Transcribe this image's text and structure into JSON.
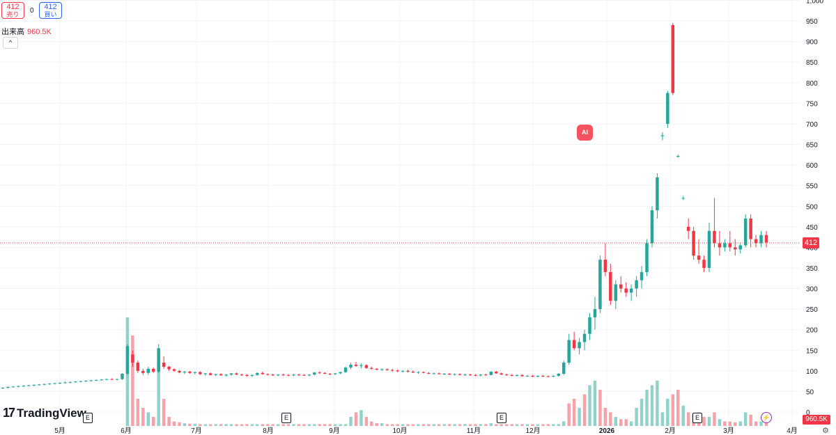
{
  "header": {
    "sell_price": "412",
    "sell_label": "売り",
    "buy_price": "412",
    "buy_label": "買い",
    "spread": "0",
    "volume_label": "出来高",
    "volume_value": "960.5K",
    "collapse_glyph": "^"
  },
  "ai_badge": "AI",
  "logo_text": "TradingView",
  "price_tag": "412",
  "volume_tag": "960.5K",
  "event_marker": "E",
  "colors": {
    "up": "#26a69a",
    "down": "#f23645",
    "up_vol": "#93d2cb",
    "down_vol": "#f5a3a8",
    "grid": "#f0f3fa"
  },
  "chart_data": {
    "type": "candlestick",
    "y_ticks": [
      "0",
      "50",
      "100",
      "150",
      "200",
      "250",
      "300",
      "350",
      "400",
      "450",
      "500",
      "550",
      "600",
      "650",
      "700",
      "750",
      "800",
      "850",
      "900",
      "950",
      "1,000"
    ],
    "ylim": [
      0,
      1000
    ],
    "x_ticks": [
      "5月",
      "6月",
      "7月",
      "8月",
      "9月",
      "10月",
      "11月",
      "12月",
      "2026",
      "2月",
      "3月",
      "4月"
    ],
    "last_price": 412,
    "last_volume": "960.5K",
    "candles": [
      [
        58,
        60,
        56,
        59
      ],
      [
        59,
        62,
        57,
        61
      ],
      [
        61,
        63,
        59,
        62
      ],
      [
        62,
        64,
        60,
        63
      ],
      [
        63,
        65,
        61,
        64
      ],
      [
        64,
        66,
        62,
        65
      ],
      [
        65,
        67,
        63,
        66
      ],
      [
        66,
        68,
        64,
        67
      ],
      [
        67,
        69,
        65,
        68
      ],
      [
        68,
        70,
        66,
        69
      ],
      [
        69,
        71,
        67,
        70
      ],
      [
        70,
        72,
        68,
        71
      ],
      [
        71,
        74,
        69,
        72
      ],
      [
        72,
        74,
        70,
        73
      ],
      [
        73,
        75,
        71,
        74
      ],
      [
        74,
        76,
        72,
        75
      ],
      [
        75,
        77,
        73,
        76
      ],
      [
        76,
        78,
        74,
        77
      ],
      [
        77,
        79,
        75,
        78
      ],
      [
        78,
        80,
        76,
        79
      ],
      [
        79,
        81,
        77,
        80
      ],
      [
        80,
        82,
        78,
        79
      ],
      [
        79,
        81,
        77,
        80
      ],
      [
        80,
        95,
        78,
        93
      ],
      [
        93,
        165,
        90,
        160
      ],
      [
        140,
        150,
        110,
        120
      ],
      [
        120,
        125,
        95,
        100
      ],
      [
        100,
        105,
        90,
        95
      ],
      [
        95,
        110,
        90,
        105
      ],
      [
        105,
        108,
        95,
        98
      ],
      [
        98,
        165,
        95,
        155
      ],
      [
        120,
        135,
        105,
        110
      ],
      [
        110,
        112,
        100,
        104
      ],
      [
        104,
        106,
        98,
        100
      ],
      [
        100,
        102,
        94,
        96
      ],
      [
        96,
        100,
        92,
        98
      ],
      [
        98,
        100,
        93,
        95
      ],
      [
        95,
        98,
        91,
        97
      ],
      [
        97,
        99,
        90,
        92
      ],
      [
        92,
        95,
        88,
        94
      ],
      [
        94,
        96,
        89,
        90
      ],
      [
        90,
        93,
        87,
        92
      ],
      [
        92,
        94,
        88,
        89
      ],
      [
        89,
        92,
        86,
        91
      ],
      [
        91,
        95,
        88,
        94
      ],
      [
        94,
        96,
        90,
        91
      ],
      [
        91,
        93,
        88,
        90
      ],
      [
        90,
        92,
        86,
        88
      ],
      [
        88,
        91,
        85,
        90
      ],
      [
        90,
        96,
        88,
        95
      ],
      [
        95,
        98,
        91,
        92
      ],
      [
        92,
        94,
        89,
        91
      ],
      [
        91,
        93,
        88,
        89
      ],
      [
        89,
        92,
        87,
        91
      ],
      [
        91,
        93,
        88,
        90
      ],
      [
        90,
        92,
        87,
        89
      ],
      [
        89,
        92,
        87,
        91
      ],
      [
        91,
        93,
        88,
        90
      ],
      [
        90,
        92,
        88,
        89
      ],
      [
        89,
        92,
        87,
        91
      ],
      [
        91,
        97,
        89,
        96
      ],
      [
        96,
        99,
        93,
        95
      ],
      [
        95,
        97,
        92,
        93
      ],
      [
        93,
        95,
        90,
        92
      ],
      [
        92,
        95,
        90,
        94
      ],
      [
        94,
        98,
        92,
        97
      ],
      [
        97,
        110,
        95,
        108
      ],
      [
        108,
        120,
        104,
        115
      ],
      [
        115,
        122,
        110,
        112
      ],
      [
        112,
        118,
        106,
        114
      ],
      [
        114,
        116,
        105,
        107
      ],
      [
        107,
        110,
        103,
        105
      ],
      [
        105,
        107,
        101,
        103
      ],
      [
        103,
        106,
        100,
        104
      ],
      [
        104,
        106,
        100,
        102
      ],
      [
        102,
        105,
        98,
        101
      ],
      [
        101,
        103,
        97,
        99
      ],
      [
        99,
        102,
        96,
        100
      ],
      [
        100,
        103,
        96,
        98
      ],
      [
        98,
        101,
        95,
        96
      ],
      [
        96,
        99,
        93,
        97
      ],
      [
        97,
        99,
        94,
        95
      ],
      [
        95,
        97,
        92,
        93
      ],
      [
        93,
        96,
        91,
        94
      ],
      [
        94,
        96,
        91,
        92
      ],
      [
        92,
        95,
        90,
        93
      ],
      [
        93,
        95,
        90,
        91
      ],
      [
        91,
        94,
        89,
        92
      ],
      [
        92,
        94,
        89,
        90
      ],
      [
        90,
        93,
        88,
        91
      ],
      [
        91,
        93,
        88,
        90
      ],
      [
        90,
        92,
        87,
        89
      ],
      [
        89,
        92,
        86,
        91
      ],
      [
        91,
        93,
        88,
        90
      ],
      [
        90,
        99,
        89,
        98
      ],
      [
        98,
        100,
        93,
        94
      ],
      [
        94,
        96,
        90,
        91
      ],
      [
        91,
        93,
        88,
        90
      ],
      [
        90,
        92,
        87,
        88
      ],
      [
        88,
        91,
        86,
        90
      ],
      [
        90,
        92,
        86,
        87
      ],
      [
        87,
        90,
        85,
        88
      ],
      [
        88,
        90,
        85,
        86
      ],
      [
        86,
        89,
        84,
        88
      ],
      [
        88,
        90,
        85,
        87
      ],
      [
        87,
        89,
        84,
        86
      ],
      [
        86,
        89,
        84,
        88
      ],
      [
        88,
        95,
        86,
        93
      ],
      [
        93,
        125,
        90,
        120
      ],
      [
        120,
        190,
        115,
        175
      ],
      [
        175,
        195,
        150,
        155
      ],
      [
        155,
        180,
        140,
        170
      ],
      [
        170,
        200,
        150,
        190
      ],
      [
        190,
        240,
        175,
        230
      ],
      [
        230,
        280,
        200,
        250
      ],
      [
        250,
        380,
        240,
        370
      ],
      [
        370,
        410,
        330,
        340
      ],
      [
        340,
        360,
        260,
        270
      ],
      [
        270,
        320,
        250,
        310
      ],
      [
        310,
        330,
        290,
        300
      ],
      [
        300,
        315,
        280,
        290
      ],
      [
        290,
        310,
        270,
        300
      ],
      [
        300,
        330,
        280,
        320
      ],
      [
        320,
        355,
        300,
        340
      ],
      [
        340,
        420,
        330,
        410
      ],
      [
        410,
        500,
        400,
        490
      ],
      [
        490,
        580,
        470,
        570
      ],
      [
        670,
        680,
        660,
        672
      ],
      [
        700,
        780,
        690,
        775
      ],
      [
        940,
        945,
        770,
        775
      ],
      [
        620,
        625,
        618,
        622
      ],
      [
        520,
        525,
        515,
        520
      ],
      [
        450,
        470,
        420,
        440
      ],
      [
        440,
        450,
        370,
        380
      ],
      [
        380,
        420,
        360,
        370
      ],
      [
        370,
        380,
        340,
        350
      ],
      [
        350,
        460,
        340,
        440
      ],
      [
        440,
        520,
        400,
        410
      ],
      [
        410,
        440,
        380,
        400
      ],
      [
        400,
        420,
        390,
        410
      ],
      [
        410,
        440,
        390,
        400
      ],
      [
        400,
        420,
        380,
        395
      ],
      [
        395,
        410,
        385,
        405
      ],
      [
        405,
        480,
        400,
        470
      ],
      [
        470,
        480,
        400,
        420
      ],
      [
        420,
        430,
        400,
        410
      ],
      [
        410,
        440,
        400,
        430
      ],
      [
        430,
        440,
        400,
        412
      ]
    ],
    "volumes": [
      [
        0,
        0
      ],
      [
        0,
        0
      ],
      [
        0,
        0
      ],
      [
        0,
        0
      ],
      [
        0,
        0
      ],
      [
        0,
        0
      ],
      [
        0,
        0
      ],
      [
        0,
        0
      ],
      [
        0,
        0
      ],
      [
        0,
        0
      ],
      [
        0,
        0
      ],
      [
        0,
        0
      ],
      [
        0,
        0
      ],
      [
        0,
        0
      ],
      [
        0,
        0
      ],
      [
        0,
        0
      ],
      [
        0,
        0
      ],
      [
        0,
        0
      ],
      [
        0,
        0
      ],
      [
        0,
        0
      ],
      [
        0,
        0
      ],
      [
        0,
        0
      ],
      [
        0,
        0
      ],
      [
        0,
        0
      ],
      [
        240,
        1
      ],
      [
        200,
        0
      ],
      [
        60,
        0
      ],
      [
        40,
        0
      ],
      [
        30,
        1
      ],
      [
        20,
        0
      ],
      [
        150,
        1
      ],
      [
        60,
        0
      ],
      [
        20,
        0
      ],
      [
        10,
        0
      ],
      [
        8,
        0
      ],
      [
        6,
        1
      ],
      [
        5,
        0
      ],
      [
        5,
        1
      ],
      [
        4,
        0
      ],
      [
        4,
        1
      ],
      [
        4,
        0
      ],
      [
        4,
        1
      ],
      [
        4,
        0
      ],
      [
        4,
        1
      ],
      [
        4,
        1
      ],
      [
        4,
        0
      ],
      [
        4,
        0
      ],
      [
        4,
        0
      ],
      [
        4,
        1
      ],
      [
        4,
        1
      ],
      [
        4,
        0
      ],
      [
        4,
        0
      ],
      [
        4,
        0
      ],
      [
        4,
        1
      ],
      [
        4,
        0
      ],
      [
        4,
        0
      ],
      [
        4,
        1
      ],
      [
        4,
        0
      ],
      [
        4,
        0
      ],
      [
        4,
        1
      ],
      [
        4,
        1
      ],
      [
        4,
        0
      ],
      [
        4,
        0
      ],
      [
        4,
        0
      ],
      [
        4,
        1
      ],
      [
        4,
        1
      ],
      [
        4,
        1
      ],
      [
        20,
        1
      ],
      [
        30,
        0
      ],
      [
        35,
        1
      ],
      [
        20,
        0
      ],
      [
        10,
        0
      ],
      [
        6,
        0
      ],
      [
        6,
        1
      ],
      [
        4,
        0
      ],
      [
        4,
        0
      ],
      [
        4,
        0
      ],
      [
        4,
        1
      ],
      [
        4,
        0
      ],
      [
        4,
        0
      ],
      [
        4,
        1
      ],
      [
        4,
        0
      ],
      [
        4,
        0
      ],
      [
        4,
        1
      ],
      [
        4,
        0
      ],
      [
        4,
        1
      ],
      [
        4,
        0
      ],
      [
        4,
        1
      ],
      [
        4,
        0
      ],
      [
        4,
        1
      ],
      [
        4,
        0
      ],
      [
        4,
        0
      ],
      [
        4,
        1
      ],
      [
        4,
        0
      ],
      [
        6,
        1
      ],
      [
        4,
        0
      ],
      [
        4,
        0
      ],
      [
        4,
        0
      ],
      [
        4,
        0
      ],
      [
        4,
        1
      ],
      [
        4,
        0
      ],
      [
        4,
        1
      ],
      [
        4,
        0
      ],
      [
        4,
        1
      ],
      [
        4,
        0
      ],
      [
        4,
        0
      ],
      [
        4,
        1
      ],
      [
        4,
        1
      ],
      [
        10,
        1
      ],
      [
        50,
        0
      ],
      [
        60,
        0
      ],
      [
        40,
        1
      ],
      [
        70,
        0
      ],
      [
        90,
        1
      ],
      [
        100,
        1
      ],
      [
        80,
        0
      ],
      [
        40,
        0
      ],
      [
        30,
        0
      ],
      [
        20,
        1
      ],
      [
        15,
        0
      ],
      [
        15,
        0
      ],
      [
        10,
        1
      ],
      [
        40,
        1
      ],
      [
        60,
        1
      ],
      [
        80,
        1
      ],
      [
        90,
        1
      ],
      [
        100,
        1
      ],
      [
        30,
        1
      ],
      [
        60,
        1
      ],
      [
        70,
        0
      ],
      [
        80,
        0
      ],
      [
        45,
        1
      ],
      [
        30,
        0
      ],
      [
        25,
        0
      ],
      [
        30,
        0
      ],
      [
        20,
        0
      ],
      [
        20,
        1
      ],
      [
        30,
        0
      ],
      [
        15,
        1
      ],
      [
        10,
        0
      ],
      [
        10,
        0
      ],
      [
        8,
        0
      ],
      [
        10,
        1
      ],
      [
        30,
        1
      ],
      [
        25,
        0
      ],
      [
        10,
        0
      ],
      [
        10,
        1
      ],
      [
        8,
        0
      ]
    ]
  }
}
